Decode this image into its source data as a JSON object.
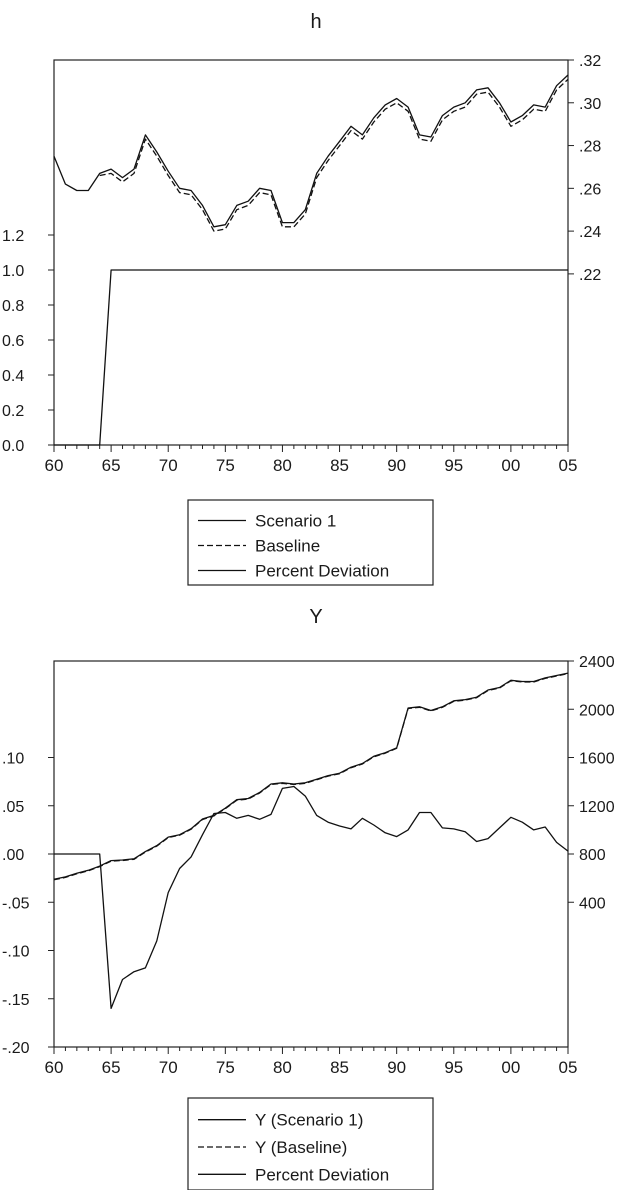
{
  "chart_data": [
    {
      "type": "line",
      "title": "h",
      "x_tick_labels": [
        "60",
        "65",
        "70",
        "75",
        "80",
        "85",
        "90",
        "95",
        "00",
        "05"
      ],
      "years": [
        1960,
        1961,
        1962,
        1963,
        1964,
        1965,
        1966,
        1967,
        1968,
        1969,
        1970,
        1971,
        1972,
        1973,
        1974,
        1975,
        1976,
        1977,
        1978,
        1979,
        1980,
        1981,
        1982,
        1983,
        1984,
        1985,
        1986,
        1987,
        1988,
        1989,
        1990,
        1991,
        1992,
        1993,
        1994,
        1995,
        1996,
        1997,
        1998,
        1999,
        2000,
        2001,
        2002,
        2003,
        2004,
        2005
      ],
      "left_axis": {
        "ylim": [
          0.0,
          2.2
        ],
        "tick_labels": [
          "0.0",
          "0.2",
          "0.4",
          "0.6",
          "0.8",
          "1.0",
          "1.2"
        ]
      },
      "right_axis": {
        "ylim": [
          0.14,
          0.32
        ],
        "tick_labels": [
          ".22",
          ".24",
          ".26",
          ".28",
          ".30",
          ".32"
        ]
      },
      "series": [
        {
          "name": "Scenario 1",
          "axis": "right",
          "dash": "solid",
          "start_year": 1960,
          "values": [
            0.275,
            0.262,
            0.259,
            0.259,
            0.267,
            0.269,
            0.265,
            0.269,
            0.285,
            0.277,
            0.268,
            0.26,
            0.259,
            0.252,
            0.242,
            0.243,
            0.252,
            0.254,
            0.26,
            0.259,
            0.244,
            0.244,
            0.25,
            0.267,
            0.275,
            0.282,
            0.289,
            0.285,
            0.293,
            0.299,
            0.302,
            0.298,
            0.285,
            0.284,
            0.294,
            0.298,
            0.3,
            0.306,
            0.307,
            0.3,
            0.291,
            0.294,
            0.299,
            0.298,
            0.308,
            0.313
          ]
        },
        {
          "name": "Baseline",
          "axis": "right",
          "dash": "dashed",
          "start_year": 1964,
          "values": [
            0.266,
            0.267,
            0.263,
            0.267,
            0.283,
            0.275,
            0.266,
            0.258,
            0.257,
            0.25,
            0.24,
            0.241,
            0.25,
            0.252,
            0.258,
            0.257,
            0.242,
            0.242,
            0.248,
            0.265,
            0.273,
            0.28,
            0.287,
            0.283,
            0.291,
            0.297,
            0.3,
            0.296,
            0.283,
            0.282,
            0.292,
            0.296,
            0.298,
            0.304,
            0.305,
            0.298,
            0.289,
            0.292,
            0.297,
            0.296,
            0.306,
            0.311
          ]
        },
        {
          "name": "Percent Deviation",
          "axis": "left",
          "dash": "solid",
          "start_year": 1960,
          "values": [
            0,
            0,
            0,
            0,
            0,
            1,
            1,
            1,
            1,
            1,
            1,
            1,
            1,
            1,
            1,
            1,
            1,
            1,
            1,
            1,
            1,
            1,
            1,
            1,
            1,
            1,
            1,
            1,
            1,
            1,
            1,
            1,
            1,
            1,
            1,
            1,
            1,
            1,
            1,
            1,
            1,
            1,
            1,
            1,
            1,
            1
          ]
        }
      ],
      "legend": [
        "Scenario 1",
        "Baseline",
        "Percent Deviation"
      ],
      "legend_position": "bottom-center"
    },
    {
      "type": "line",
      "title": "Y",
      "x_tick_labels": [
        "60",
        "65",
        "70",
        "75",
        "80",
        "85",
        "90",
        "95",
        "00",
        "05"
      ],
      "years": [
        1960,
        1961,
        1962,
        1963,
        1964,
        1965,
        1966,
        1967,
        1968,
        1969,
        1970,
        1971,
        1972,
        1973,
        1974,
        1975,
        1976,
        1977,
        1978,
        1979,
        1980,
        1981,
        1982,
        1983,
        1984,
        1985,
        1986,
        1987,
        1988,
        1989,
        1990,
        1991,
        1992,
        1993,
        1994,
        1995,
        1996,
        1997,
        1998,
        1999,
        2000,
        2001,
        2002,
        2003,
        2004,
        2005
      ],
      "left_axis": {
        "ylim": [
          -0.2,
          0.2
        ],
        "tick_labels": [
          "-.20",
          "-.15",
          "-.10",
          "-.05",
          ".00",
          ".05",
          ".10"
        ]
      },
      "right_axis": {
        "ylim": [
          -800,
          2400
        ],
        "tick_labels": [
          "400",
          "800",
          "1200",
          "1600",
          "2000",
          "2400"
        ]
      },
      "series": [
        {
          "name": "Y (Scenario 1)",
          "axis": "right",
          "dash": "solid",
          "start_year": 1960,
          "values": [
            590,
            610,
            640,
            665,
            700,
            745,
            750,
            760,
            820,
            870,
            940,
            960,
            1010,
            1090,
            1120,
            1180,
            1250,
            1260,
            1310,
            1380,
            1390,
            1380,
            1390,
            1420,
            1450,
            1470,
            1520,
            1550,
            1610,
            1640,
            1680,
            2010,
            2020,
            1990,
            2020,
            2070,
            2080,
            2100,
            2160,
            2180,
            2240,
            2230,
            2230,
            2260,
            2280,
            2300
          ]
        },
        {
          "name": "Y (Baseline)",
          "axis": "right",
          "dash": "dashed",
          "start_year": 1960,
          "values": [
            590,
            610,
            640,
            665,
            700,
            745,
            750,
            760,
            820,
            870,
            940,
            960,
            1010,
            1090,
            1120,
            1180,
            1250,
            1260,
            1310,
            1380,
            1390,
            1380,
            1390,
            1420,
            1450,
            1470,
            1520,
            1550,
            1610,
            1640,
            1680,
            2010,
            2020,
            1990,
            2020,
            2070,
            2080,
            2100,
            2160,
            2180,
            2240,
            2230,
            2230,
            2260,
            2280,
            2300
          ]
        },
        {
          "name": "Percent Deviation",
          "axis": "left",
          "dash": "solid",
          "start_year": 1960,
          "values": [
            0,
            0,
            0,
            0,
            0,
            -0.16,
            -0.13,
            -0.122,
            -0.118,
            -0.09,
            -0.04,
            -0.015,
            -0.003,
            0.02,
            0.042,
            0.043,
            0.037,
            0.04,
            0.036,
            0.041,
            0.068,
            0.07,
            0.06,
            0.04,
            0.033,
            0.029,
            0.026,
            0.037,
            0.03,
            0.022,
            0.018,
            0.025,
            0.043,
            0.043,
            0.027,
            0.026,
            0.023,
            0.013,
            0.016,
            0.027,
            0.038,
            0.033,
            0.025,
            0.028,
            0.012,
            0.003
          ]
        }
      ],
      "legend": [
        "Y (Scenario 1)",
        "Y (Baseline)",
        "Percent Deviation"
      ],
      "legend_position": "bottom-center"
    }
  ]
}
